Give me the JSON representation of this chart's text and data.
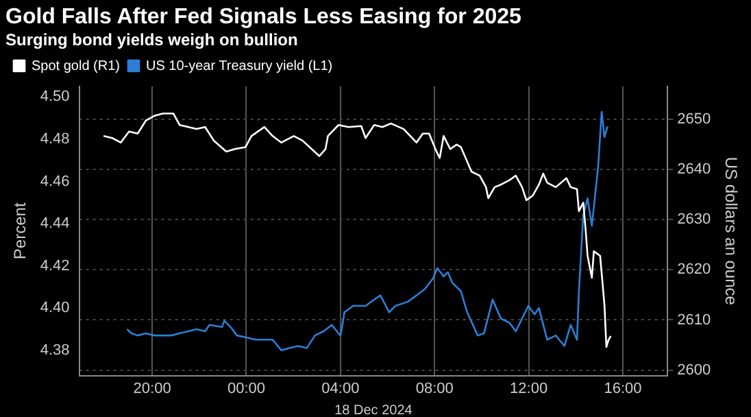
{
  "chart_data": {
    "type": "line",
    "title": "Gold Falls After Fed Signals Less Easing for 2025",
    "subtitle": "Surging bond yields weigh on bullion",
    "xlabel": "18 Dec 2024",
    "ylabel": "Percent",
    "y2label": "US dollars an ounce",
    "xlim": [
      "2024-12-17T16:54",
      "2024-12-18T17:54"
    ],
    "xticks": [
      {
        "value": "2024-12-17T20:00",
        "label": "20:00"
      },
      {
        "value": "2024-12-18T00:00",
        "label": "00:00"
      },
      {
        "value": "2024-12-18T04:00",
        "label": "04:00"
      },
      {
        "value": "2024-12-18T08:00",
        "label": "08:00"
      },
      {
        "value": "2024-12-18T12:00",
        "label": "12:00"
      },
      {
        "value": "2024-12-18T16:00",
        "label": "16:00"
      }
    ],
    "ylim": [
      4.368,
      4.505
    ],
    "yticks": [
      {
        "value": 4.38,
        "label": "4.38"
      },
      {
        "value": 4.4,
        "label": "4.40"
      },
      {
        "value": 4.42,
        "label": "4.42"
      },
      {
        "value": 4.44,
        "label": "4.44"
      },
      {
        "value": 4.46,
        "label": "4.46"
      },
      {
        "value": 4.48,
        "label": "4.48"
      },
      {
        "value": 4.5,
        "label": "4.50"
      }
    ],
    "y2lim": [
      2598.9,
      2656.6
    ],
    "y2ticks": [
      2600,
      2610,
      2620,
      2630,
      2640,
      2650
    ],
    "grid": true,
    "legend": "top left",
    "marker": "none",
    "line_style": "solid",
    "series": [
      {
        "name": "Spot gold (R1)",
        "color": "#ffffff",
        "axis": "y2",
        "x": [
          "2024-12-17T17:56",
          "2024-12-17T18:18",
          "2024-12-17T18:40",
          "2024-12-17T19:01",
          "2024-12-17T19:23",
          "2024-12-17T19:44",
          "2024-12-17T20:05",
          "2024-12-17T20:27",
          "2024-12-17T20:54",
          "2024-12-17T21:10",
          "2024-12-17T21:53",
          "2024-12-17T22:15",
          "2024-12-17T22:37",
          "2024-12-17T23:09",
          "2024-12-17T23:31",
          "2024-12-17T23:58",
          "2024-12-18T00:13",
          "2024-12-18T00:46",
          "2024-12-18T01:07",
          "2024-12-18T01:29",
          "2024-12-18T02:01",
          "2024-12-18T02:23",
          "2024-12-18T03:06",
          "2024-12-18T03:22",
          "2024-12-18T03:28",
          "2024-12-18T03:55",
          "2024-12-18T04:21",
          "2024-12-18T04:53",
          "2024-12-18T05:04",
          "2024-12-18T05:26",
          "2024-12-18T05:47",
          "2024-12-18T06:09",
          "2024-12-18T06:41",
          "2024-12-18T07:14",
          "2024-12-18T07:30",
          "2024-12-18T07:46",
          "2024-12-18T08:02",
          "2024-12-18T08:13",
          "2024-12-18T08:23",
          "2024-12-18T08:40",
          "2024-12-18T08:56",
          "2024-12-18T09:07",
          "2024-12-18T09:17",
          "2024-12-18T09:34",
          "2024-12-18T09:55",
          "2024-12-18T10:11",
          "2024-12-18T10:17",
          "2024-12-18T10:33",
          "2024-12-18T10:49",
          "2024-12-18T11:11",
          "2024-12-18T11:27",
          "2024-12-18T11:43",
          "2024-12-18T11:54",
          "2024-12-18T12:10",
          "2024-12-18T12:26",
          "2024-12-18T12:37",
          "2024-12-18T12:47",
          "2024-12-18T13:09",
          "2024-12-18T13:36",
          "2024-12-18T13:47",
          "2024-12-18T14:03",
          "2024-12-18T14:08",
          "2024-12-18T14:19",
          "2024-12-18T14:25",
          "2024-12-18T14:30",
          "2024-12-18T14:41",
          "2024-12-18T14:46",
          "2024-12-18T15:02",
          "2024-12-18T15:07",
          "2024-12-18T15:13",
          "2024-12-18T15:18",
          "2024-12-18T15:23",
          "2024-12-18T15:29"
        ],
        "values": [
          2646.7,
          2646.3,
          2645.4,
          2647.6,
          2647.2,
          2649.8,
          2650.7,
          2651.2,
          2651.2,
          2648.9,
          2648.1,
          2648.5,
          2645.8,
          2643.6,
          2644.1,
          2644.5,
          2646.7,
          2648.5,
          2646.7,
          2645.4,
          2646.7,
          2645.8,
          2642.7,
          2644.1,
          2646.7,
          2648.9,
          2648.5,
          2648.7,
          2646.3,
          2648.9,
          2648.5,
          2649.2,
          2648.1,
          2645.4,
          2647.2,
          2647.2,
          2644.1,
          2642.3,
          2646.7,
          2644.1,
          2645.0,
          2644.5,
          2642.7,
          2639.6,
          2638.8,
          2636.5,
          2634.3,
          2636.5,
          2637.0,
          2637.9,
          2638.8,
          2636.5,
          2633.9,
          2634.8,
          2637.0,
          2639.2,
          2637.4,
          2636.5,
          2638.3,
          2636.5,
          2636.1,
          2631.7,
          2633.4,
          2628.1,
          2622.8,
          2618.4,
          2623.7,
          2622.8,
          2618.4,
          2613.0,
          2604.6,
          2605.9,
          2606.8
        ]
      },
      {
        "name": "US 10-year Treasury yield (L1)",
        "color": "#2b7fd6",
        "axis": "y",
        "x": [
          "2024-12-17T18:56",
          "2024-12-17T19:07",
          "2024-12-17T19:23",
          "2024-12-17T19:44",
          "2024-12-17T20:05",
          "2024-12-17T20:49",
          "2024-12-17T21:10",
          "2024-12-17T21:32",
          "2024-12-17T21:53",
          "2024-12-17T22:15",
          "2024-12-17T22:26",
          "2024-12-17T22:58",
          "2024-12-17T23:04",
          "2024-12-17T23:20",
          "2024-12-17T23:36",
          "2024-12-18T00:02",
          "2024-12-18T00:24",
          "2024-12-18T01:07",
          "2024-12-18T01:29",
          "2024-12-18T01:50",
          "2024-12-18T02:12",
          "2024-12-18T02:34",
          "2024-12-18T02:55",
          "2024-12-18T03:17",
          "2024-12-18T03:38",
          "2024-12-18T03:55",
          "2024-12-18T04:00",
          "2024-12-18T04:05",
          "2024-12-18T04:10",
          "2024-12-18T04:32",
          "2024-12-18T05:04",
          "2024-12-18T05:26",
          "2024-12-18T05:42",
          "2024-12-18T06:04",
          "2024-12-18T06:20",
          "2024-12-18T06:52",
          "2024-12-18T07:14",
          "2024-12-18T07:35",
          "2024-12-18T07:56",
          "2024-12-18T08:07",
          "2024-12-18T08:23",
          "2024-12-18T08:34",
          "2024-12-18T08:45",
          "2024-12-18T09:07",
          "2024-12-18T09:23",
          "2024-12-18T09:50",
          "2024-12-18T10:06",
          "2024-12-18T10:28",
          "2024-12-18T10:49",
          "2024-12-18T11:11",
          "2024-12-18T11:27",
          "2024-12-18T11:43",
          "2024-12-18T11:59",
          "2024-12-18T12:15",
          "2024-12-18T12:26",
          "2024-12-18T12:47",
          "2024-12-18T13:09",
          "2024-12-18T13:31",
          "2024-12-18T13:47",
          "2024-12-18T14:03",
          "2024-12-18T14:08",
          "2024-12-18T14:19",
          "2024-12-18T14:30",
          "2024-12-18T14:41",
          "2024-12-18T14:57",
          "2024-12-18T15:06",
          "2024-12-18T15:13",
          "2024-12-18T15:21"
        ],
        "values": [
          4.39,
          4.388,
          4.387,
          4.388,
          4.387,
          4.387,
          4.388,
          4.389,
          4.39,
          4.389,
          4.392,
          4.391,
          4.394,
          4.391,
          4.387,
          4.386,
          4.385,
          4.385,
          4.38,
          4.381,
          4.382,
          4.381,
          4.387,
          4.389,
          4.392,
          4.388,
          4.387,
          4.392,
          4.398,
          4.401,
          4.401,
          4.404,
          4.406,
          4.398,
          4.401,
          4.403,
          4.406,
          4.409,
          4.414,
          4.419,
          4.415,
          4.417,
          4.412,
          4.408,
          4.398,
          4.387,
          4.388,
          4.404,
          4.395,
          4.393,
          4.389,
          4.395,
          4.401,
          4.397,
          4.4,
          4.385,
          4.387,
          4.382,
          4.392,
          4.385,
          4.408,
          4.444,
          4.452,
          4.439,
          4.467,
          4.493,
          4.481,
          4.486
        ]
      }
    ]
  }
}
